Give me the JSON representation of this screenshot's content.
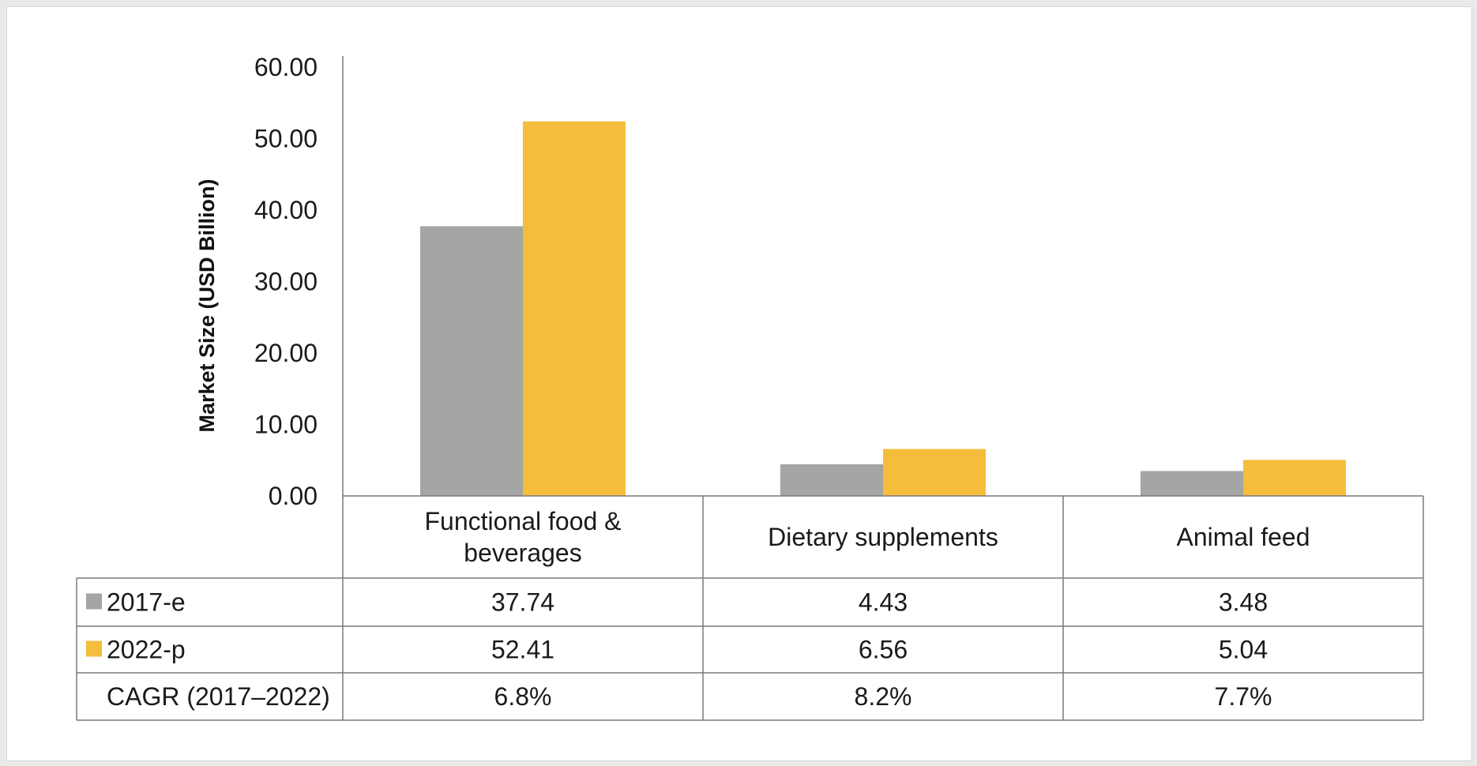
{
  "chart_data": {
    "type": "bar",
    "ylabel": "Market Size (USD Billion)",
    "ylim": [
      0,
      60
    ],
    "yticks": [
      "0.00",
      "10.00",
      "20.00",
      "30.00",
      "40.00",
      "50.00",
      "60.00"
    ],
    "categories": [
      [
        "Functional food &",
        "beverages"
      ],
      [
        "Dietary supplements"
      ],
      [
        "Animal feed"
      ]
    ],
    "series": [
      {
        "name": "2017-e",
        "color": "#a5a5a5",
        "values": [
          37.74,
          4.43,
          3.48
        ],
        "labels": [
          "37.74",
          "4.43",
          "3.48"
        ]
      },
      {
        "name": "2022-p",
        "color": "#f4bd3b",
        "values": [
          52.41,
          6.56,
          5.04
        ],
        "labels": [
          "52.41",
          "6.56",
          "5.04"
        ]
      }
    ],
    "extra_rows": [
      {
        "name": "CAGR (2017–2022)",
        "labels": [
          "6.8%",
          "8.2%",
          "7.7%"
        ]
      }
    ],
    "legend": "in data table"
  }
}
